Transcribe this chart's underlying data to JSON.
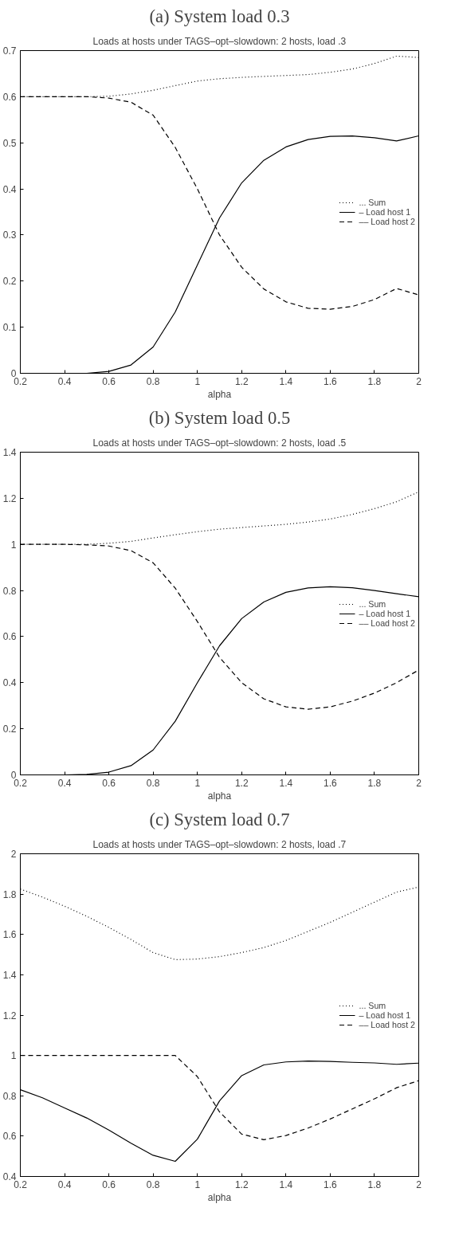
{
  "chart_data": [
    {
      "type": "line",
      "title": "(a) System load 0.3",
      "subtitle": "Loads at hosts under TAGS–opt–slowdown: 2 hosts, load .3",
      "xlabel": "alpha",
      "x": [
        0.2,
        0.3,
        0.4,
        0.5,
        0.6,
        0.7,
        0.8,
        0.9,
        1.0,
        1.1,
        1.2,
        1.3,
        1.4,
        1.5,
        1.6,
        1.7,
        1.8,
        1.9,
        2.0
      ],
      "series": [
        {
          "name": "... Sum",
          "color": "#000000",
          "line_style": "dotted",
          "values": [
            0.6,
            0.6,
            0.6,
            0.6,
            0.601,
            0.606,
            0.614,
            0.624,
            0.634,
            0.639,
            0.642,
            0.644,
            0.646,
            0.648,
            0.653,
            0.66,
            0.672,
            0.688,
            0.685
          ]
        },
        {
          "name": "– Load host 1",
          "color": "#000000",
          "line_style": "solid",
          "values": [
            0,
            0,
            0,
            0,
            0.004,
            0.018,
            0.057,
            0.133,
            0.235,
            0.337,
            0.413,
            0.462,
            0.491,
            0.507,
            0.514,
            0.515,
            0.511,
            0.504,
            0.515
          ]
        },
        {
          "name": "–– Load host 2",
          "color": "#000000",
          "line_style": "dashed",
          "values": [
            0.6,
            0.6,
            0.6,
            0.6,
            0.597,
            0.588,
            0.56,
            0.49,
            0.4,
            0.3,
            0.23,
            0.183,
            0.155,
            0.141,
            0.139,
            0.145,
            0.16,
            0.184,
            0.17
          ]
        }
      ],
      "xlim": [
        0.2,
        2
      ],
      "xticks": [
        0.2,
        0.4,
        0.6,
        0.8,
        1,
        1.2,
        1.4,
        1.6,
        1.8,
        2
      ],
      "ylim": [
        0,
        0.7
      ],
      "yticks": [
        0,
        0.1,
        0.2,
        0.3,
        0.4,
        0.5,
        0.6,
        0.7
      ],
      "grid": false,
      "legend": "right"
    },
    {
      "type": "line",
      "title": "(b) System load 0.5",
      "subtitle": "Loads at hosts under TAGS–opt–slowdown: 2 hosts, load .5",
      "xlabel": "alpha",
      "x": [
        0.2,
        0.3,
        0.4,
        0.5,
        0.6,
        0.7,
        0.8,
        0.9,
        1.0,
        1.1,
        1.2,
        1.3,
        1.4,
        1.5,
        1.6,
        1.7,
        1.8,
        1.9,
        2.0
      ],
      "series": [
        {
          "name": "... Sum",
          "color": "#000000",
          "line_style": "dotted",
          "values": [
            1,
            1,
            1,
            1,
            1.005,
            1.013,
            1.028,
            1.042,
            1.055,
            1.066,
            1.073,
            1.08,
            1.087,
            1.097,
            1.11,
            1.13,
            1.155,
            1.185,
            1.228
          ]
        },
        {
          "name": "– Load host 1",
          "color": "#000000",
          "line_style": "solid",
          "values": [
            0,
            0,
            0,
            0.002,
            0.012,
            0.04,
            0.108,
            0.233,
            0.4,
            0.56,
            0.678,
            0.75,
            0.792,
            0.811,
            0.816,
            0.812,
            0.8,
            0.786,
            0.773
          ]
        },
        {
          "name": "–– Load host 2",
          "color": "#000000",
          "line_style": "dashed",
          "values": [
            1,
            1,
            1,
            0.998,
            0.993,
            0.973,
            0.92,
            0.81,
            0.665,
            0.51,
            0.4,
            0.33,
            0.295,
            0.285,
            0.295,
            0.32,
            0.355,
            0.4,
            0.455
          ]
        }
      ],
      "xlim": [
        0.2,
        2
      ],
      "xticks": [
        0.2,
        0.4,
        0.6,
        0.8,
        1,
        1.2,
        1.4,
        1.6,
        1.8,
        2
      ],
      "ylim": [
        0,
        1.4
      ],
      "yticks": [
        0,
        0.2,
        0.4,
        0.6,
        0.8,
        1,
        1.2,
        1.4
      ],
      "grid": false,
      "legend": "right"
    },
    {
      "type": "line",
      "title": "(c) System load 0.7",
      "subtitle": "Loads at hosts under TAGS–opt–slowdown: 2 hosts, load .7",
      "xlabel": "alpha",
      "x": [
        0.2,
        0.3,
        0.4,
        0.5,
        0.6,
        0.7,
        0.8,
        0.9,
        1.0,
        1.1,
        1.2,
        1.3,
        1.4,
        1.5,
        1.6,
        1.7,
        1.8,
        1.9,
        2.0
      ],
      "series": [
        {
          "name": "... Sum",
          "color": "#000000",
          "line_style": "dotted",
          "values": [
            1.825,
            1.785,
            1.74,
            1.69,
            1.635,
            1.575,
            1.51,
            1.475,
            1.478,
            1.49,
            1.51,
            1.535,
            1.57,
            1.615,
            1.66,
            1.71,
            1.76,
            1.81,
            1.835
          ]
        },
        {
          "name": "– Load host 1",
          "color": "#000000",
          "line_style": "solid",
          "values": [
            0.83,
            0.79,
            0.74,
            0.69,
            0.63,
            0.565,
            0.505,
            0.475,
            0.585,
            0.775,
            0.9,
            0.953,
            0.968,
            0.972,
            0.97,
            0.966,
            0.963,
            0.956,
            0.962
          ]
        },
        {
          "name": "–– Load host 2",
          "color": "#000000",
          "line_style": "dashed",
          "values": [
            1,
            1,
            1,
            1,
            1,
            1,
            1,
            1,
            0.895,
            0.72,
            0.61,
            0.582,
            0.603,
            0.64,
            0.685,
            0.735,
            0.785,
            0.84,
            0.875
          ]
        }
      ],
      "xlim": [
        0.2,
        2
      ],
      "xticks": [
        0.2,
        0.4,
        0.6,
        0.8,
        1,
        1.2,
        1.4,
        1.6,
        1.8,
        2
      ],
      "ylim": [
        0.4,
        2
      ],
      "yticks": [
        0.4,
        0.6,
        0.8,
        1,
        1.2,
        1.4,
        1.6,
        1.8,
        2
      ],
      "grid": false,
      "legend": "right"
    }
  ]
}
